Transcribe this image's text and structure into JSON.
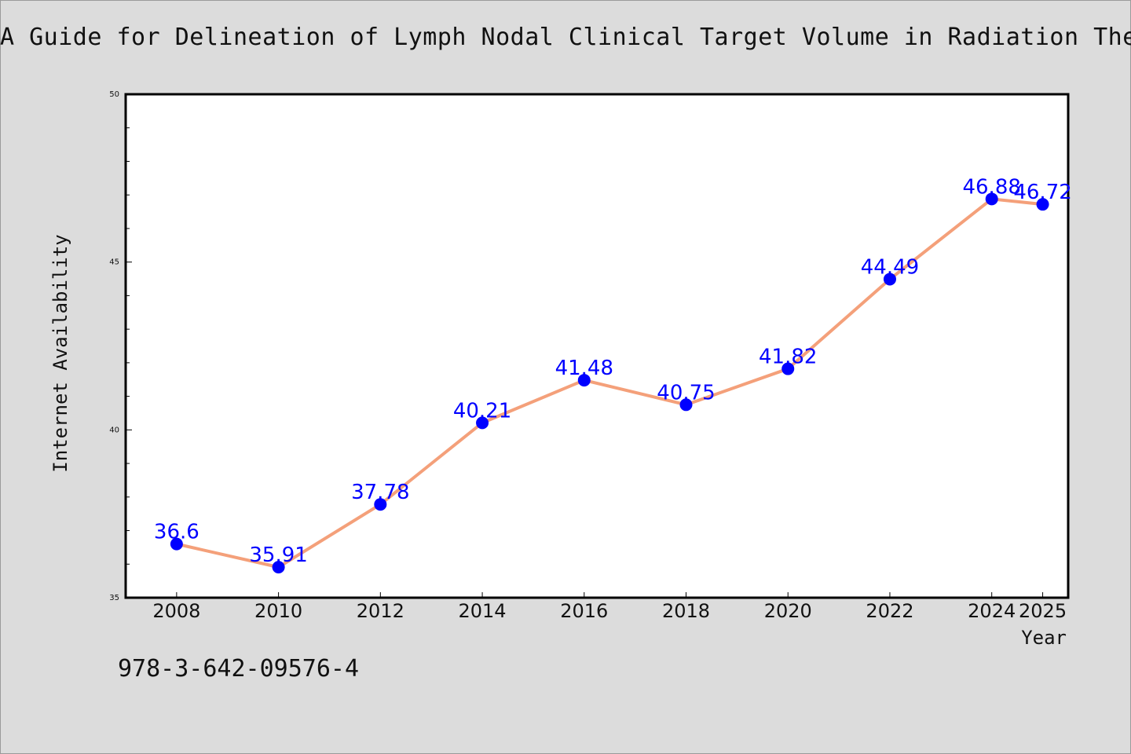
{
  "page": {
    "title": "A Guide for Delineation of Lymph Nodal Clinical Target Volume in Radiation Thera",
    "isbn": "978-3-642-09576-4"
  },
  "colors": {
    "background": "#dcdcdc",
    "plot_background": "#ffffff",
    "line": "#f4a07a",
    "marker": "#0000ff",
    "data_label": "#0000ff"
  },
  "chart_data": {
    "type": "line",
    "title": "A Guide for Delineation of Lymph Nodal Clinical Target Volume in Radiation Thera",
    "xlabel": "Year",
    "ylabel": "Internet Availability",
    "x": [
      "2008",
      "2010",
      "2012",
      "2014",
      "2016",
      "2018",
      "2020",
      "2022",
      "2024",
      "2025"
    ],
    "values": [
      36.6,
      35.91,
      37.78,
      40.21,
      41.48,
      40.75,
      41.82,
      44.49,
      46.88,
      46.72
    ],
    "data_labels": [
      "36.6",
      "35.91",
      "37.78",
      "40.21",
      "41.48",
      "40.75",
      "41.82",
      "44.49",
      "46.88",
      "46.72"
    ],
    "ylim": [
      35,
      50
    ],
    "y_ticks": [
      "35",
      "40",
      "45",
      "50"
    ],
    "grid": false,
    "legend": "none"
  }
}
